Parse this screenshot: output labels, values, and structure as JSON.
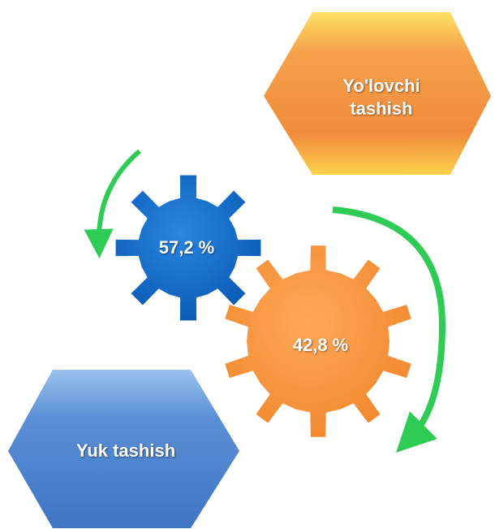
{
  "blocks": [
    {
      "label": "Yo'lovchi tashish"
    },
    {
      "label": "Yuk tashish"
    }
  ],
  "gears": [
    {
      "label": "57,2 %"
    },
    {
      "label": "42,8 %"
    }
  ]
}
